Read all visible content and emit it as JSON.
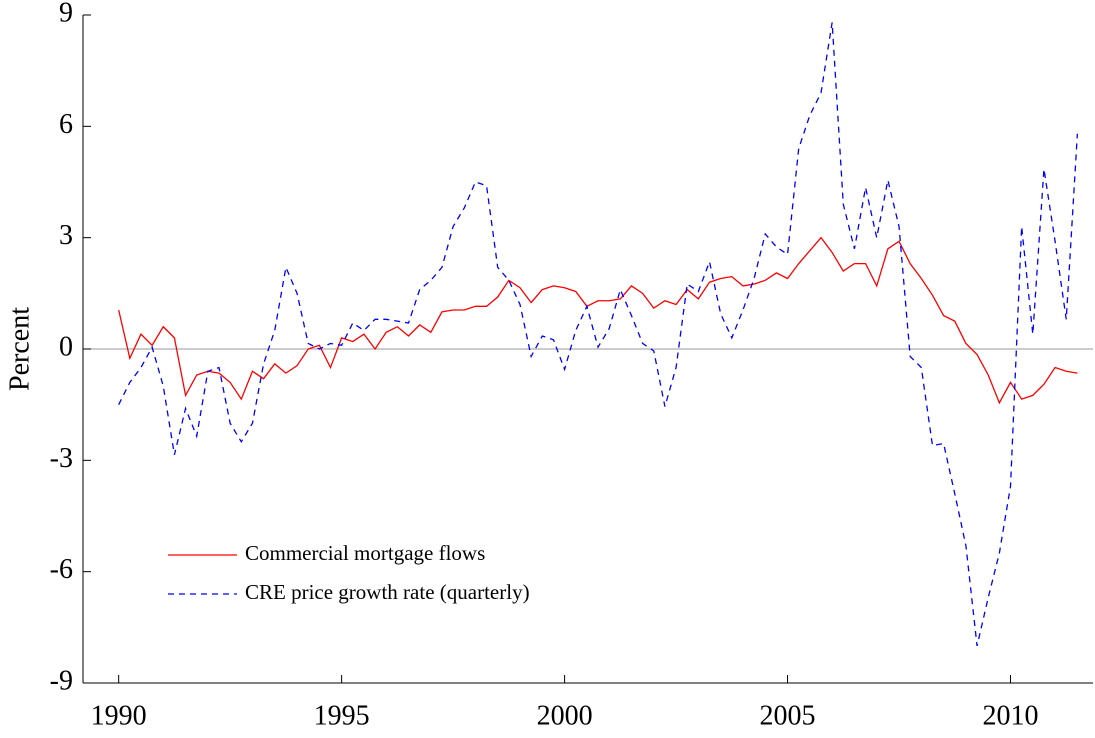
{
  "chart_data": {
    "type": "line",
    "ylabel": "Percent",
    "x": [
      1990,
      1990.25,
      1990.5,
      1990.75,
      1991,
      1991.25,
      1991.5,
      1991.75,
      1992,
      1992.25,
      1992.5,
      1992.75,
      1993,
      1993.25,
      1993.5,
      1993.75,
      1994,
      1994.25,
      1994.5,
      1994.75,
      1995,
      1995.25,
      1995.5,
      1995.75,
      1996,
      1996.25,
      1996.5,
      1996.75,
      1997,
      1997.25,
      1997.5,
      1997.75,
      1998,
      1998.25,
      1998.5,
      1998.75,
      1999,
      1999.25,
      1999.5,
      1999.75,
      2000,
      2000.25,
      2000.5,
      2000.75,
      2001,
      2001.25,
      2001.5,
      2001.75,
      2002,
      2002.25,
      2002.5,
      2002.75,
      2003,
      2003.25,
      2003.5,
      2003.75,
      2004,
      2004.25,
      2004.5,
      2004.75,
      2005,
      2005.25,
      2005.5,
      2005.75,
      2006,
      2006.25,
      2006.5,
      2006.75,
      2007,
      2007.25,
      2007.5,
      2007.75,
      2008,
      2008.25,
      2008.5,
      2008.75,
      2009,
      2009.25,
      2009.5,
      2009.75,
      2010,
      2010.25,
      2010.5,
      2010.75,
      2011,
      2011.25,
      2011.5
    ],
    "series": [
      {
        "name": "Commercial mortgage flows",
        "color": "#ff0000",
        "dash": "none",
        "values": [
          1.05,
          -0.25,
          0.4,
          0.1,
          0.6,
          0.3,
          -1.25,
          -0.7,
          -0.6,
          -0.65,
          -0.9,
          -1.35,
          -0.6,
          -0.8,
          -0.4,
          -0.65,
          -0.45,
          0.0,
          0.1,
          -0.5,
          0.3,
          0.2,
          0.4,
          0.0,
          0.45,
          0.6,
          0.35,
          0.65,
          0.45,
          1.0,
          1.05,
          1.05,
          1.15,
          1.15,
          1.4,
          1.85,
          1.65,
          1.25,
          1.6,
          1.7,
          1.65,
          1.55,
          1.15,
          1.3,
          1.3,
          1.35,
          1.7,
          1.5,
          1.1,
          1.3,
          1.2,
          1.6,
          1.35,
          1.8,
          1.9,
          1.95,
          1.7,
          1.75,
          1.85,
          2.05,
          1.9,
          2.3,
          2.65,
          3.0,
          2.6,
          2.1,
          2.3,
          2.3,
          1.7,
          2.7,
          2.9,
          2.3,
          1.9,
          1.45,
          0.9,
          0.75,
          0.15,
          -0.15,
          -0.7,
          -1.45,
          -0.9,
          -1.35,
          -1.25,
          -0.95,
          -0.5,
          -0.6,
          -0.65
        ]
      },
      {
        "name": "CRE price growth rate (quarterly)",
        "color": "#0000ff",
        "dash": "6,5",
        "values": [
          -1.5,
          -0.9,
          -0.5,
          0.05,
          -1.0,
          -2.85,
          -1.6,
          -2.35,
          -0.6,
          -0.5,
          -2.0,
          -2.5,
          -2.0,
          -0.4,
          0.5,
          2.2,
          1.5,
          0.15,
          0.0,
          0.15,
          0.1,
          0.7,
          0.5,
          0.8,
          0.8,
          0.75,
          0.7,
          1.6,
          1.85,
          2.2,
          3.3,
          3.8,
          4.5,
          4.4,
          2.2,
          1.85,
          1.2,
          -0.2,
          0.35,
          0.25,
          -0.55,
          0.5,
          1.15,
          0.05,
          0.55,
          1.6,
          0.9,
          0.15,
          -0.05,
          -1.55,
          -0.5,
          1.75,
          1.55,
          2.35,
          0.95,
          0.3,
          1.05,
          1.9,
          3.1,
          2.75,
          2.55,
          5.4,
          6.3,
          6.9,
          8.8,
          3.9,
          2.7,
          4.35,
          3.0,
          4.55,
          3.3,
          -0.2,
          -0.5,
          -2.6,
          -2.55,
          -3.9,
          -5.3,
          -8.0,
          -6.7,
          -5.5,
          -3.7,
          3.3,
          0.4,
          4.85,
          2.9,
          0.8,
          5.8
        ]
      }
    ],
    "xlim": [
      1989.2,
      2011.85
    ],
    "xticks": [
      1990,
      1995,
      2000,
      2005,
      2010
    ],
    "ylim": [
      -9,
      9
    ],
    "yticks": [
      -9,
      -6,
      -3,
      0,
      3,
      6,
      9
    ],
    "zero_line": true,
    "legend": "lower left"
  }
}
